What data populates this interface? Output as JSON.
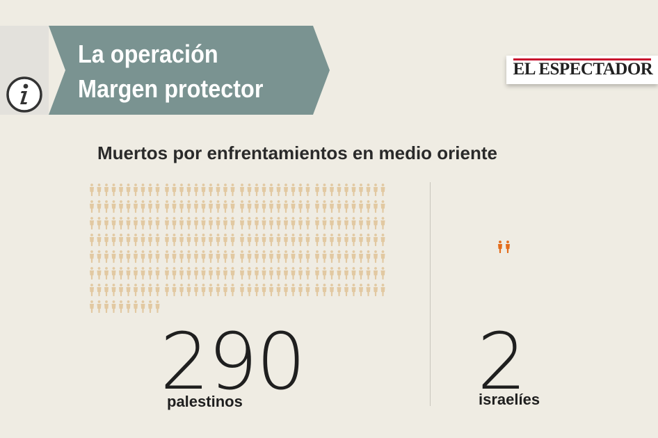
{
  "header": {
    "info_icon": "info-icon",
    "title_line1": "La operación",
    "title_line2": "Margen protector",
    "banner_color": "#7a9391"
  },
  "logo": {
    "text": "EL ESPECTADOR"
  },
  "subtitle": "Muertos por enfrentamientos en medio oriente",
  "palestinians": {
    "count": "290",
    "label": "palestinos",
    "icon_count": 290,
    "icon_color": "#e2c9a2"
  },
  "israelis": {
    "count": "2",
    "label": "israelíes",
    "icon_count": 2,
    "icon_color": "#e36c1b"
  }
}
